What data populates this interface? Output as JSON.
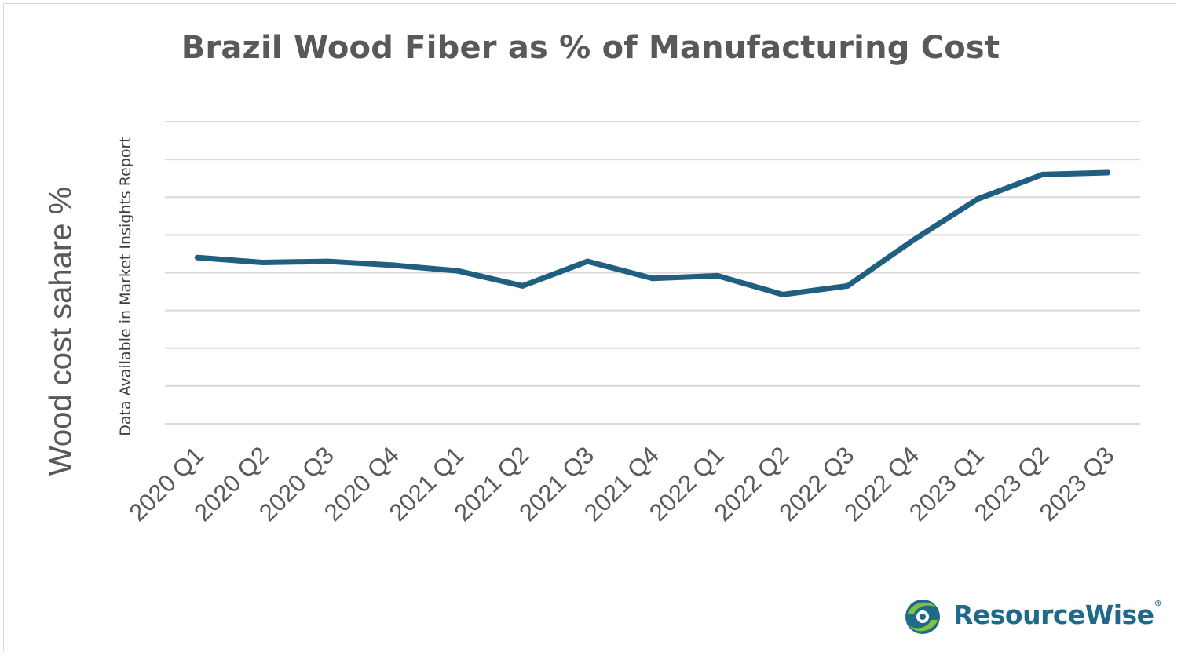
{
  "chart_data": {
    "type": "line",
    "title": "Brazil Wood Fiber as % of Manufacturing Cost",
    "ylabel": "Wood cost  sahare %",
    "xlabel": "",
    "annotation": "Data Available in Market Insights Report",
    "categories": [
      "2020 Q1",
      "2020 Q2",
      "2020 Q3",
      "2020 Q4",
      "2021 Q1",
      "2021 Q2",
      "2021 Q3",
      "2021 Q4",
      "2022 Q1",
      "2022 Q2",
      "2022 Q3",
      "2022 Q4",
      "2023 Q1",
      "2023 Q2",
      "2023 Q3"
    ],
    "series": [
      {
        "values": [
          4.4,
          4.27,
          4.3,
          4.2,
          4.05,
          3.65,
          4.3,
          3.85,
          3.92,
          3.42,
          3.65,
          4.85,
          5.95,
          6.6,
          6.65
        ],
        "color": "#215f80"
      }
    ],
    "ylim": [
      0,
      8
    ],
    "gridlines": 8,
    "grid": true,
    "y_tick_labels_shown": false,
    "legend": "none"
  },
  "branding": {
    "logo_text": "ResourceWise",
    "logo_mark": "®",
    "logo_icon": "swirl-globe-icon"
  },
  "colors": {
    "line": "#215f80",
    "grid": "#d9d9d9",
    "title": "#595959"
  }
}
